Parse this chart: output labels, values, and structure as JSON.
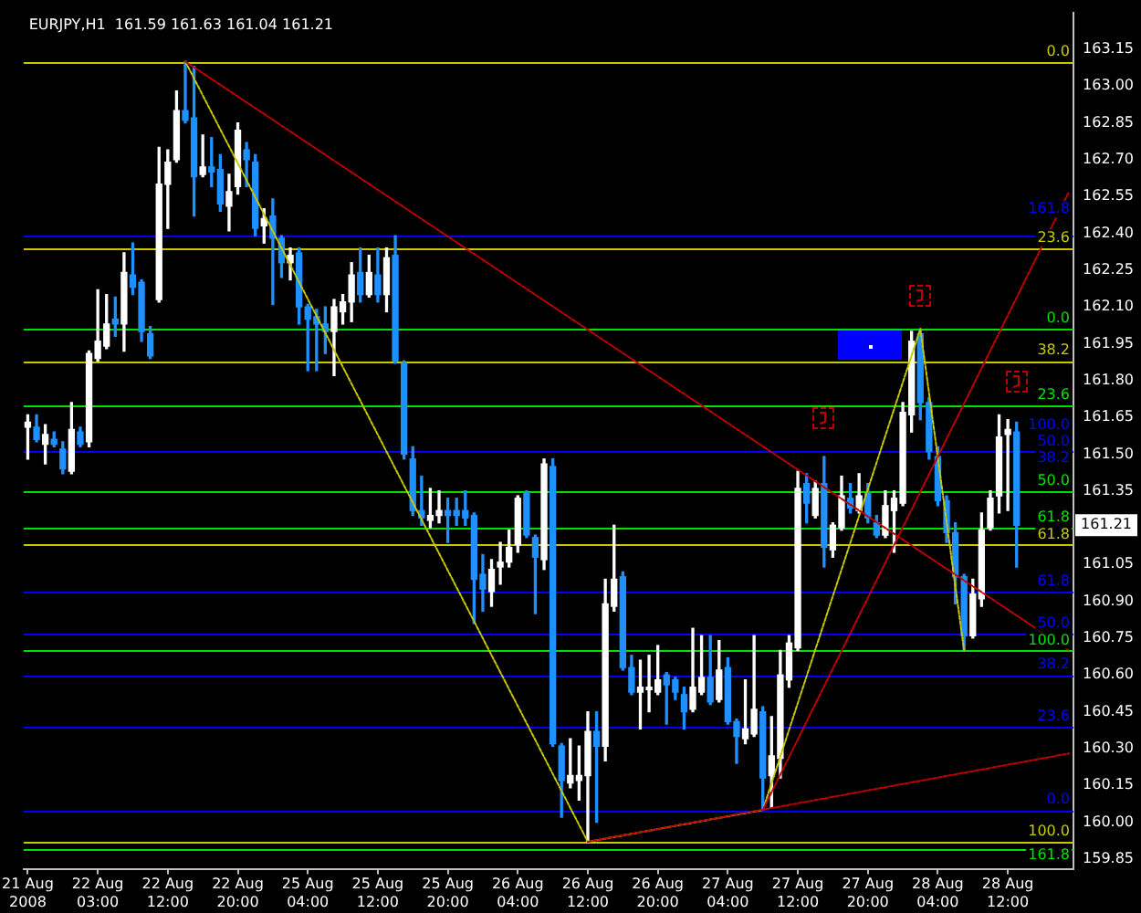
{
  "chart_data": {
    "type": "candlestick",
    "title": "EURJPY,H1  161.59 161.63 161.04 161.21",
    "categories": [
      "21 Aug 2008",
      null,
      null,
      null,
      null,
      null,
      null,
      null,
      "22 Aug 03:00",
      null,
      null,
      null,
      null,
      null,
      null,
      null,
      "22 Aug 12:00",
      null,
      null,
      null,
      null,
      null,
      null,
      null,
      "22 Aug 20:00",
      null,
      null,
      null,
      null,
      null,
      null,
      null,
      "25 Aug 04:00",
      null,
      null,
      null,
      null,
      null,
      null,
      null,
      "25 Aug 12:00",
      null,
      null,
      null,
      null,
      null,
      null,
      null,
      "25 Aug 20:00",
      null,
      null,
      null,
      null,
      null,
      null,
      null,
      "26 Aug 04:00",
      null,
      null,
      null,
      null,
      null,
      null,
      null,
      "26 Aug 12:00",
      null,
      null,
      null,
      null,
      null,
      null,
      null,
      "26 Aug 20:00",
      null,
      null,
      null,
      null,
      null,
      null,
      null,
      "27 Aug 04:00",
      null,
      null,
      null,
      null,
      null,
      null,
      null,
      "27 Aug 12:00",
      null,
      null,
      null,
      null,
      null,
      null,
      null,
      "27 Aug 20:00",
      null,
      null,
      null,
      null,
      null,
      null,
      null,
      "28 Aug 04:00",
      null,
      null,
      null,
      null,
      null,
      null,
      null,
      "28 Aug 12:00",
      null,
      null,
      null,
      null,
      null,
      null,
      null
    ],
    "ohlc": [
      [
        161.61,
        161.66,
        161.48,
        161.63
      ],
      [
        161.61,
        161.66,
        161.55,
        161.56
      ],
      [
        161.54,
        161.62,
        161.46,
        161.58
      ],
      [
        161.56,
        161.59,
        161.53,
        161.54
      ],
      [
        161.52,
        161.55,
        161.42,
        161.44
      ],
      [
        161.43,
        161.71,
        161.42,
        161.6
      ],
      [
        161.59,
        161.61,
        161.53,
        161.54
      ],
      [
        161.55,
        161.92,
        161.53,
        161.91
      ],
      [
        161.89,
        162.17,
        161.88,
        161.96
      ],
      [
        161.94,
        162.15,
        161.93,
        162.03
      ],
      [
        162.05,
        162.14,
        161.98,
        162.03
      ],
      [
        162.03,
        162.32,
        161.92,
        162.24
      ],
      [
        162.23,
        162.36,
        162.15,
        162.18
      ],
      [
        162.2,
        162.21,
        161.96,
        162.0
      ],
      [
        161.99,
        162.02,
        161.89,
        161.9
      ],
      [
        162.13,
        162.75,
        162.12,
        162.6
      ],
      [
        162.6,
        162.74,
        162.42,
        162.69
      ],
      [
        162.7,
        162.98,
        162.69,
        162.9
      ],
      [
        162.9,
        163.1,
        162.85,
        162.86
      ],
      [
        162.87,
        163.08,
        162.47,
        162.63
      ],
      [
        162.64,
        162.8,
        162.63,
        162.67
      ],
      [
        162.67,
        162.79,
        162.59,
        162.65
      ],
      [
        162.66,
        162.72,
        162.49,
        162.52
      ],
      [
        162.51,
        162.64,
        162.41,
        162.57
      ],
      [
        162.59,
        162.85,
        162.56,
        162.82
      ],
      [
        162.74,
        162.77,
        162.59,
        162.7
      ],
      [
        162.69,
        162.72,
        162.39,
        162.42
      ],
      [
        162.43,
        162.5,
        162.36,
        162.46
      ],
      [
        162.47,
        162.54,
        162.11,
        162.38
      ],
      [
        162.38,
        162.39,
        162.22,
        162.28
      ],
      [
        162.28,
        162.34,
        162.21,
        162.31
      ],
      [
        162.32,
        162.34,
        162.03,
        162.1
      ],
      [
        162.1,
        162.11,
        161.84,
        162.05
      ],
      [
        162.06,
        162.09,
        161.84,
        162.03
      ],
      [
        162.03,
        162.1,
        161.91,
        162.0
      ],
      [
        162.0,
        162.13,
        161.82,
        162.1
      ],
      [
        162.08,
        162.15,
        162.03,
        162.12
      ],
      [
        162.12,
        162.28,
        162.04,
        162.23
      ],
      [
        162.24,
        162.34,
        162.12,
        162.15
      ],
      [
        162.15,
        162.31,
        162.14,
        162.24
      ],
      [
        162.23,
        162.34,
        162.12,
        162.15
      ],
      [
        162.15,
        162.34,
        162.08,
        162.3
      ],
      [
        162.31,
        162.39,
        161.87,
        161.88
      ],
      [
        161.87,
        161.88,
        161.48,
        161.5
      ],
      [
        161.48,
        161.53,
        161.25,
        161.27
      ],
      [
        161.27,
        161.41,
        161.21,
        161.24
      ],
      [
        161.23,
        161.36,
        161.2,
        161.25
      ],
      [
        161.25,
        161.35,
        161.22,
        161.27
      ],
      [
        161.27,
        161.32,
        161.14,
        161.25
      ],
      [
        161.27,
        161.32,
        161.21,
        161.25
      ],
      [
        161.27,
        161.35,
        161.21,
        161.24
      ],
      [
        161.25,
        161.26,
        160.81,
        160.99
      ],
      [
        161.01,
        161.09,
        160.86,
        160.95
      ],
      [
        160.94,
        161.07,
        160.88,
        161.03
      ],
      [
        161.04,
        161.14,
        160.97,
        161.06
      ],
      [
        161.06,
        161.19,
        161.04,
        161.12
      ],
      [
        161.13,
        161.33,
        161.1,
        161.32
      ],
      [
        161.34,
        161.35,
        161.16,
        161.17
      ],
      [
        161.16,
        161.17,
        160.85,
        161.08
      ],
      [
        161.07,
        161.48,
        161.03,
        161.46
      ],
      [
        161.45,
        161.48,
        160.31,
        160.32
      ],
      [
        160.31,
        160.32,
        160.02,
        160.17
      ],
      [
        160.16,
        160.34,
        160.14,
        160.19
      ],
      [
        160.17,
        160.31,
        160.09,
        160.19
      ],
      [
        160.19,
        160.45,
        159.92,
        160.37
      ],
      [
        160.37,
        160.45,
        160.0,
        160.31
      ],
      [
        160.31,
        160.99,
        160.25,
        160.89
      ],
      [
        160.88,
        161.21,
        160.86,
        160.99
      ],
      [
        161.0,
        161.02,
        160.62,
        160.63
      ],
      [
        160.63,
        160.68,
        160.52,
        160.53
      ],
      [
        160.53,
        160.66,
        160.38,
        160.55
      ],
      [
        160.54,
        160.68,
        160.45,
        160.55
      ],
      [
        160.53,
        160.72,
        160.52,
        160.58
      ],
      [
        160.6,
        160.61,
        160.4,
        160.56
      ],
      [
        160.58,
        160.59,
        160.5,
        160.53
      ],
      [
        160.52,
        160.55,
        160.38,
        160.45
      ],
      [
        160.46,
        160.79,
        160.45,
        160.55
      ],
      [
        160.53,
        160.76,
        160.52,
        160.59
      ],
      [
        160.59,
        160.76,
        160.48,
        160.49
      ],
      [
        160.5,
        160.74,
        160.49,
        160.62
      ],
      [
        160.63,
        160.67,
        160.4,
        160.41
      ],
      [
        160.41,
        160.42,
        160.24,
        160.35
      ],
      [
        160.34,
        160.58,
        160.32,
        160.38
      ],
      [
        160.36,
        160.76,
        160.35,
        160.46
      ],
      [
        160.45,
        160.47,
        160.05,
        160.18
      ],
      [
        160.19,
        160.43,
        160.06,
        160.27
      ],
      [
        160.26,
        160.7,
        160.18,
        160.6
      ],
      [
        160.58,
        160.76,
        160.55,
        160.73
      ],
      [
        160.71,
        161.43,
        160.7,
        161.36
      ],
      [
        161.38,
        161.42,
        161.22,
        161.3
      ],
      [
        161.25,
        161.39,
        161.24,
        161.36
      ],
      [
        161.38,
        161.49,
        161.04,
        161.12
      ],
      [
        161.11,
        161.22,
        161.08,
        161.21
      ],
      [
        161.2,
        161.41,
        161.19,
        161.33
      ],
      [
        161.32,
        161.38,
        161.26,
        161.28
      ],
      [
        161.27,
        161.42,
        161.26,
        161.33
      ],
      [
        161.34,
        161.38,
        161.22,
        161.24
      ],
      [
        161.22,
        161.25,
        161.16,
        161.17
      ],
      [
        161.17,
        161.35,
        161.16,
        161.29
      ],
      [
        161.27,
        161.35,
        161.1,
        161.32
      ],
      [
        161.3,
        161.71,
        161.29,
        161.67
      ],
      [
        161.66,
        162.0,
        161.59,
        161.96
      ],
      [
        161.99,
        162.01,
        161.64,
        161.71
      ],
      [
        161.71,
        161.73,
        161.48,
        161.51
      ],
      [
        161.49,
        161.53,
        161.29,
        161.31
      ],
      [
        161.31,
        161.33,
        161.14,
        161.18
      ],
      [
        161.18,
        161.22,
        160.89,
        161.0
      ],
      [
        161.0,
        161.01,
        160.7,
        160.76
      ],
      [
        160.76,
        160.99,
        160.75,
        160.93
      ],
      [
        160.91,
        161.26,
        160.88,
        161.19
      ],
      [
        161.2,
        161.35,
        161.19,
        161.32
      ],
      [
        161.33,
        161.66,
        161.26,
        161.57
      ],
      [
        161.58,
        161.64,
        161.27,
        161.6
      ],
      [
        161.59,
        161.63,
        161.04,
        161.21
      ],
      null,
      null,
      null,
      null,
      null,
      null
    ],
    "colors": [
      "#ffffff",
      "#1e90ff",
      "#ffffff",
      "#1e90ff",
      "#1e90ff",
      "#ffffff",
      "#1e90ff",
      "#ffffff",
      "#ffffff",
      "#ffffff",
      "#1e90ff",
      "#ffffff",
      "#1e90ff",
      "#1e90ff",
      "#1e90ff",
      "#ffffff",
      "#ffffff",
      "#ffffff",
      "#1e90ff",
      "#1e90ff",
      "#ffffff",
      "#1e90ff",
      "#1e90ff",
      "#ffffff",
      "#ffffff",
      "#1e90ff",
      "#1e90ff",
      "#ffffff",
      "#1e90ff",
      "#1e90ff",
      "#ffffff",
      "#1e90ff",
      "#1e90ff",
      "#1e90ff",
      "#1e90ff",
      "#ffffff",
      "#ffffff",
      "#ffffff",
      "#1e90ff",
      "#ffffff",
      "#1e90ff",
      "#ffffff",
      "#1e90ff",
      "#1e90ff",
      "#1e90ff",
      "#1e90ff",
      "#ffffff",
      "#ffffff",
      "#1e90ff",
      "#1e90ff",
      "#1e90ff",
      "#1e90ff",
      "#1e90ff",
      "#ffffff",
      "#ffffff",
      "#ffffff",
      "#ffffff",
      "#1e90ff",
      "#1e90ff",
      "#ffffff",
      "#1e90ff",
      "#1e90ff",
      "#ffffff",
      "#ffffff",
      "#ffffff",
      "#1e90ff",
      "#ffffff",
      "#ffffff",
      "#1e90ff",
      "#1e90ff",
      "#ffffff",
      "#ffffff",
      "#ffffff",
      "#1e90ff",
      "#1e90ff",
      "#1e90ff",
      "#ffffff",
      "#ffffff",
      "#1e90ff",
      "#ffffff",
      "#1e90ff",
      "#1e90ff",
      "#ffffff",
      "#ffffff",
      "#1e90ff",
      "#ffffff",
      "#ffffff",
      "#ffffff",
      "#ffffff",
      "#1e90ff",
      "#ffffff",
      "#1e90ff",
      "#ffffff",
      "#ffffff",
      "#1e90ff",
      "#ffffff",
      "#1e90ff",
      "#1e90ff",
      "#ffffff",
      "#ffffff",
      "#ffffff",
      "#ffffff",
      "#1e90ff",
      "#1e90ff",
      "#1e90ff",
      "#1e90ff",
      "#1e90ff",
      "#1e90ff",
      "#ffffff",
      "#ffffff",
      "#ffffff",
      "#ffffff",
      "#ffffff",
      "#1e90ff",
      null,
      null,
      null,
      null,
      null,
      null
    ],
    "series": [
      {
        "type": "line",
        "color": "#c00000",
        "line_style": "dotted",
        "values": [
          null,
          null,
          null,
          null,
          null,
          null,
          null,
          null,
          null,
          null,
          null,
          null,
          null,
          null,
          null,
          null,
          null,
          null,
          163.1,
          null,
          null,
          null,
          null,
          null,
          null,
          null,
          null,
          null,
          null,
          null,
          null,
          null,
          null,
          null,
          null,
          null,
          null,
          null,
          null,
          null,
          null,
          null,
          null,
          null,
          null,
          null,
          null,
          null,
          null,
          null,
          null,
          null,
          null,
          null,
          null,
          null,
          null,
          null,
          null,
          null,
          null,
          null,
          null,
          null,
          null,
          null,
          null,
          null,
          null,
          null,
          null,
          null,
          null,
          null,
          null,
          null,
          null,
          null,
          null,
          null,
          null,
          null,
          null,
          null,
          null,
          null,
          null,
          null,
          null,
          null,
          null,
          null,
          null,
          null,
          null,
          null,
          null,
          null,
          null,
          null,
          null,
          null,
          null,
          null,
          null,
          null,
          null,
          null,
          null,
          null,
          null,
          null,
          null,
          null,
          null,
          null,
          null,
          null,
          null,
          160.7
        ]
      },
      {
        "type": "line",
        "color": "#c00000",
        "line_style": "dotted",
        "values": [
          null,
          null,
          null,
          null,
          null,
          null,
          null,
          null,
          null,
          null,
          null,
          null,
          null,
          null,
          null,
          null,
          null,
          null,
          null,
          null,
          null,
          null,
          null,
          null,
          null,
          null,
          null,
          null,
          null,
          null,
          null,
          null,
          null,
          null,
          null,
          null,
          null,
          null,
          null,
          null,
          null,
          null,
          null,
          null,
          null,
          null,
          null,
          null,
          null,
          null,
          null,
          null,
          null,
          null,
          null,
          null,
          null,
          null,
          null,
          null,
          null,
          null,
          null,
          null,
          159.92,
          null,
          null,
          null,
          null,
          null,
          null,
          null,
          null,
          null,
          null,
          null,
          null,
          null,
          null,
          null,
          null,
          null,
          null,
          null,
          null,
          null,
          null,
          null,
          null,
          null,
          null,
          null,
          null,
          null,
          null,
          null,
          null,
          null,
          null,
          null,
          null,
          null,
          null,
          null,
          null,
          null,
          null,
          null,
          null,
          null,
          null,
          null,
          null,
          null,
          null,
          null,
          null,
          null,
          null,
          160.28
        ]
      },
      {
        "type": "line",
        "color": "#c00000",
        "line_style": "dotted",
        "values": [
          null,
          null,
          null,
          null,
          null,
          null,
          null,
          null,
          null,
          null,
          null,
          null,
          null,
          null,
          null,
          null,
          null,
          null,
          null,
          null,
          null,
          null,
          null,
          null,
          null,
          null,
          null,
          null,
          null,
          null,
          null,
          null,
          null,
          null,
          null,
          null,
          null,
          null,
          null,
          null,
          null,
          null,
          null,
          null,
          null,
          null,
          null,
          null,
          null,
          null,
          null,
          null,
          null,
          null,
          null,
          null,
          null,
          null,
          null,
          null,
          null,
          null,
          null,
          null,
          null,
          null,
          null,
          null,
          null,
          null,
          null,
          null,
          null,
          null,
          null,
          null,
          null,
          null,
          null,
          null,
          null,
          null,
          null,
          null,
          160.05,
          null,
          null,
          null,
          null,
          null,
          null,
          null,
          null,
          null,
          null,
          null,
          null,
          null,
          null,
          null,
          null,
          null,
          null,
          null,
          null,
          null,
          null,
          null,
          null,
          null,
          null,
          null,
          null,
          null,
          null,
          null,
          null,
          null,
          null,
          162.57
        ]
      },
      {
        "type": "line",
        "color": "#c8c800",
        "line_style": "dotted",
        "values": [
          null,
          null,
          null,
          null,
          null,
          null,
          null,
          null,
          null,
          null,
          null,
          null,
          null,
          null,
          null,
          null,
          null,
          null,
          163.1,
          null,
          null,
          null,
          null,
          null,
          null,
          null,
          null,
          null,
          null,
          null,
          null,
          null,
          null,
          null,
          null,
          null,
          null,
          null,
          null,
          null,
          null,
          null,
          null,
          null,
          null,
          null,
          null,
          null,
          null,
          null,
          null,
          null,
          null,
          null,
          null,
          null,
          null,
          null,
          null,
          null,
          null,
          null,
          null,
          null,
          159.92,
          null,
          null,
          null,
          null,
          null,
          null,
          null,
          null,
          null,
          null,
          null,
          null,
          null,
          null,
          null,
          null,
          null,
          null,
          null,
          160.05,
          null,
          null,
          null,
          null,
          null,
          null,
          null,
          null,
          null,
          null,
          null,
          null,
          null,
          null,
          null,
          null,
          null,
          162.01,
          null,
          null,
          null,
          null,
          160.7,
          null,
          null,
          null,
          null,
          null,
          null,
          null,
          null,
          null,
          null,
          null,
          null
        ]
      }
    ],
    "ylim": [
      159.81,
      163.3
    ],
    "yticks": [
      159.85,
      {
        "value": 160,
        "label": "160.00"
      },
      160.15,
      {
        "value": 160.3,
        "label": "160.30"
      },
      160.45,
      {
        "value": 160.6,
        "label": "160.60"
      },
      160.75,
      {
        "value": 160.9,
        "label": "160.90"
      },
      161.05,
      161.35,
      {
        "value": 161.5,
        "label": "161.50"
      },
      161.65,
      {
        "value": 161.8,
        "label": "161.80"
      },
      161.95,
      {
        "value": 162.1,
        "label": "162.10"
      },
      162.25,
      {
        "value": 162.4,
        "label": "162.40"
      },
      162.55,
      {
        "value": 162.7,
        "label": "162.70"
      },
      162.85,
      {
        "value": 163,
        "label": "163.00"
      },
      163.15
    ],
    "ref_lines": [
      {
        "axis": "y",
        "value": 163.1,
        "color": "#c8c800"
      },
      {
        "axis": "y",
        "value": 162.34,
        "color": "#c8c800"
      },
      {
        "axis": "y",
        "value": 161.88,
        "color": "#c8c800"
      },
      {
        "axis": "y",
        "value": 161.13,
        "color": "#c8c800"
      },
      {
        "axis": "y",
        "value": 159.92,
        "color": "#c8c800"
      },
      {
        "axis": "y",
        "value": 160.05,
        "color": "#0000ff"
      },
      {
        "axis": "y",
        "value": 160.39,
        "color": "#0000ff"
      },
      {
        "axis": "y",
        "value": 160.6,
        "color": "#0000ff"
      },
      {
        "axis": "y",
        "value": 160.77,
        "color": "#0000ff"
      },
      {
        "axis": "y",
        "value": 160.94,
        "color": "#0000ff"
      },
      {
        "axis": "y",
        "value": 161.51,
        "color": "#0000ff"
      },
      {
        "axis": "y",
        "value": 162.39,
        "color": "#0000ff"
      },
      {
        "axis": "y",
        "value": 162.01,
        "color": "#00e000"
      },
      {
        "axis": "y",
        "value": 161.7,
        "color": "#00e000"
      },
      {
        "axis": "y",
        "value": 161.35,
        "color": "#00e000"
      },
      {
        "axis": "y",
        "value": 161.2,
        "color": "#00e000"
      },
      {
        "axis": "y",
        "value": 160.7,
        "color": "#00e000"
      },
      {
        "axis": "y",
        "value": 159.89,
        "color": "#00e000"
      }
    ],
    "annotations": [
      {
        "text": "0.0",
        "y": 163.1
      },
      {
        "text": "23.6",
        "y": 162.34
      },
      {
        "text": "38.2",
        "y": 161.88
      },
      {
        "text": "50.0",
        "y": 161.51
      },
      {
        "text": "61.8",
        "y": 161.13
      },
      {
        "text": "100.0",
        "y": 159.92
      },
      {
        "text": "0.0",
        "y": 160.05
      },
      {
        "text": "23.6",
        "y": 160.39
      },
      {
        "text": "38.2",
        "y": 160.6
      },
      {
        "text": "50.0",
        "y": 160.77
      },
      {
        "text": "61.8",
        "y": 160.94
      },
      {
        "text": "100.0",
        "y": 161.51
      },
      {
        "text": "161.8",
        "y": 162.39
      },
      {
        "text": "0.0",
        "y": 162.01
      },
      {
        "text": "23.6",
        "y": 161.7
      },
      {
        "text": "38.2",
        "y": 161.51
      },
      {
        "text": "50.0",
        "y": 161.35
      },
      {
        "text": "61.8",
        "y": 161.2
      },
      {
        "text": "100.0",
        "y": 160.7
      },
      {
        "text": "161.8",
        "y": 159.89
      },
      {
        "text": "161.21",
        "y": 161.21
      }
    ]
  }
}
